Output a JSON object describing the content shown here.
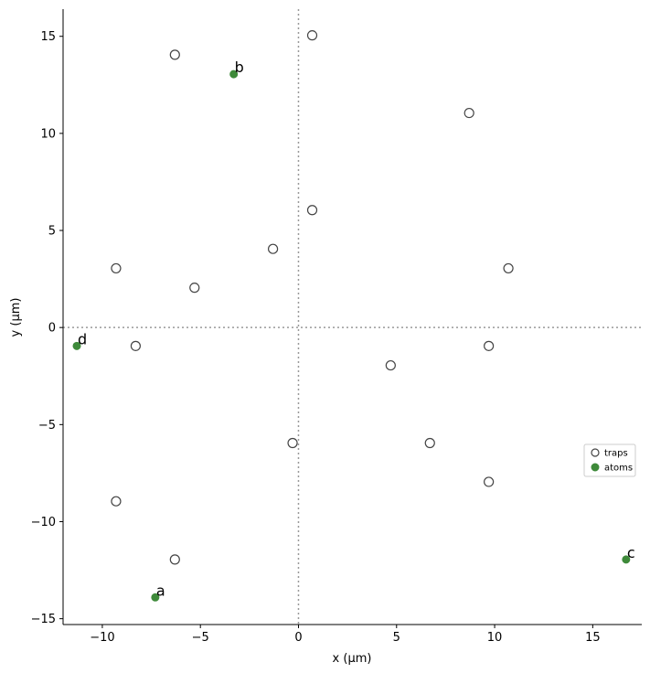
{
  "chart_data": {
    "type": "scatter",
    "xlabel": "x (µm)",
    "ylabel": "y (µm)",
    "xlim": [
      -12,
      17.5
    ],
    "ylim": [
      -15.3,
      16.4
    ],
    "x_ticks": [
      -10,
      -5,
      0,
      5,
      10,
      15
    ],
    "y_ticks": [
      -15,
      -10,
      -5,
      0,
      5,
      10,
      15
    ],
    "x_tick_labels": [
      "−10",
      "−5",
      "0",
      "5",
      "10",
      "15"
    ],
    "y_tick_labels": [
      "−15",
      "−10",
      "−5",
      "0",
      "5",
      "10",
      "15"
    ],
    "reference_lines": {
      "x": 0,
      "y": 0,
      "style": "dotted",
      "color": "#999999"
    },
    "grid": false,
    "legend_placement": "right",
    "series": [
      {
        "name": "traps",
        "marker": "hollow-circle",
        "color": "#444444",
        "points": [
          [
            -6.3,
            14.05
          ],
          [
            0.7,
            15.05
          ],
          [
            8.7,
            11.05
          ],
          [
            0.7,
            6.05
          ],
          [
            -1.3,
            4.05
          ],
          [
            -9.3,
            3.05
          ],
          [
            -5.3,
            2.05
          ],
          [
            10.7,
            3.05
          ],
          [
            -8.3,
            -0.95
          ],
          [
            9.7,
            -0.95
          ],
          [
            4.7,
            -1.95
          ],
          [
            -0.3,
            -5.95
          ],
          [
            6.7,
            -5.95
          ],
          [
            9.7,
            -7.95
          ],
          [
            -9.3,
            -8.95
          ],
          [
            -6.3,
            -11.95
          ]
        ]
      },
      {
        "name": "atoms",
        "marker": "filled-circle",
        "color": "#3e8a3a",
        "points": [
          {
            "x": -7.3,
            "y": -13.9,
            "label": "a"
          },
          {
            "x": -3.3,
            "y": 13.05,
            "label": "b"
          },
          {
            "x": 16.7,
            "y": -11.95,
            "label": "c"
          },
          {
            "x": -11.3,
            "y": -0.95,
            "label": "d"
          }
        ]
      }
    ]
  }
}
